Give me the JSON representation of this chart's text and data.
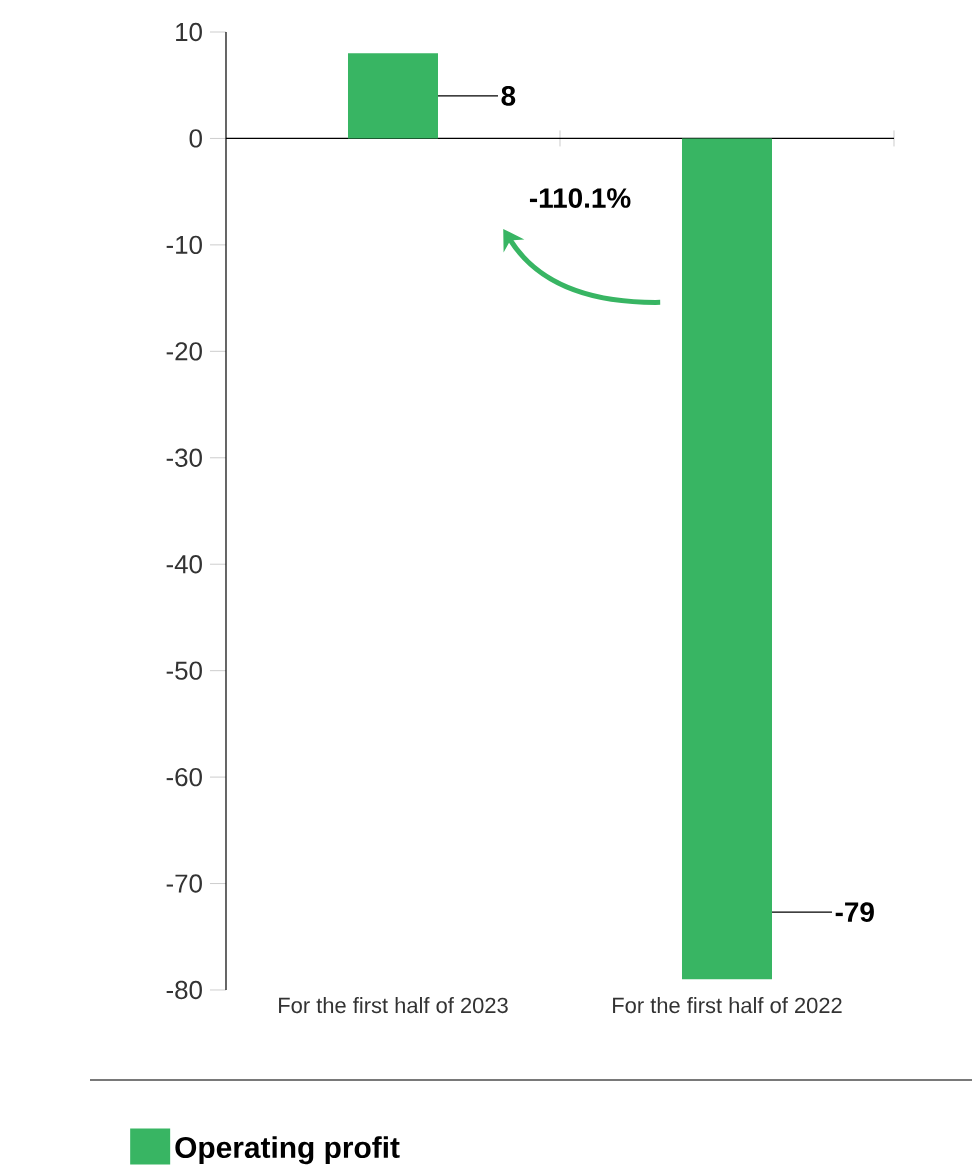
{
  "chart_data": {
    "type": "bar",
    "categories": [
      "For the first half of 2023",
      "For the first half of 2022"
    ],
    "series": [
      {
        "name": "Operating profit",
        "color": "#38b563",
        "values": [
          8,
          -79
        ]
      }
    ],
    "ylim": [
      -80,
      10
    ],
    "yticks": [
      -80,
      -70,
      -60,
      -50,
      -40,
      -30,
      -20,
      -10,
      0,
      10
    ],
    "data_labels": true,
    "legend": "bottom",
    "annotations": [
      "-110.1%"
    ]
  }
}
